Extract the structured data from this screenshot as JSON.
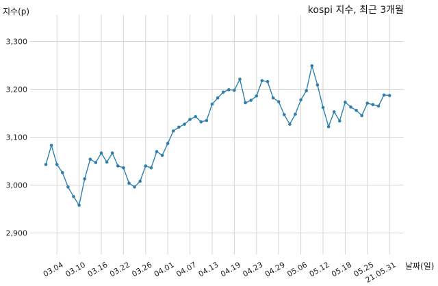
{
  "chart_data": {
    "type": "line",
    "title": "kospi 지수, 최근 3개월",
    "xlabel": "날짜(일)",
    "ylabel": "지수(p)",
    "ylim": [
      2855,
      3355
    ],
    "yticks": [
      2900,
      3000,
      3100,
      3200,
      3300
    ],
    "ytick_labels": [
      "2,900",
      "3,000",
      "3,100",
      "3,200",
      "3,300"
    ],
    "xtick_labels": [
      "03.04",
      "03.10",
      "03.16",
      "03.22",
      "03.26",
      "04.01",
      "04.07",
      "04.13",
      "04.19",
      "04.23",
      "04.29",
      "05.06",
      "05.12",
      "05.18",
      "05.25",
      "21.05.31"
    ],
    "xtick_index": [
      2,
      6,
      10,
      14,
      18,
      22,
      26,
      30,
      34,
      38,
      42,
      46,
      50,
      54,
      58,
      62
    ],
    "grid": true,
    "color": "#2e7fad",
    "series": [
      {
        "values": [
          3043,
          3083,
          3043,
          3026,
          2996,
          2976,
          2958,
          3013,
          3054,
          3047,
          3067,
          3048,
          3067,
          3040,
          3036,
          3004,
          2996,
          3008,
          3040,
          3036,
          3070,
          3062,
          3087,
          3113,
          3121,
          3127,
          3137,
          3143,
          3132,
          3135,
          3169,
          3182,
          3194,
          3199,
          3198,
          3221,
          3172,
          3177,
          3186,
          3218,
          3216,
          3182,
          3174,
          3147,
          3127,
          3148,
          3178,
          3197,
          3249,
          3209,
          3162,
          3122,
          3153,
          3134,
          3173,
          3163,
          3156,
          3145,
          3171,
          3168,
          3165,
          3188,
          3187
        ]
      }
    ]
  }
}
